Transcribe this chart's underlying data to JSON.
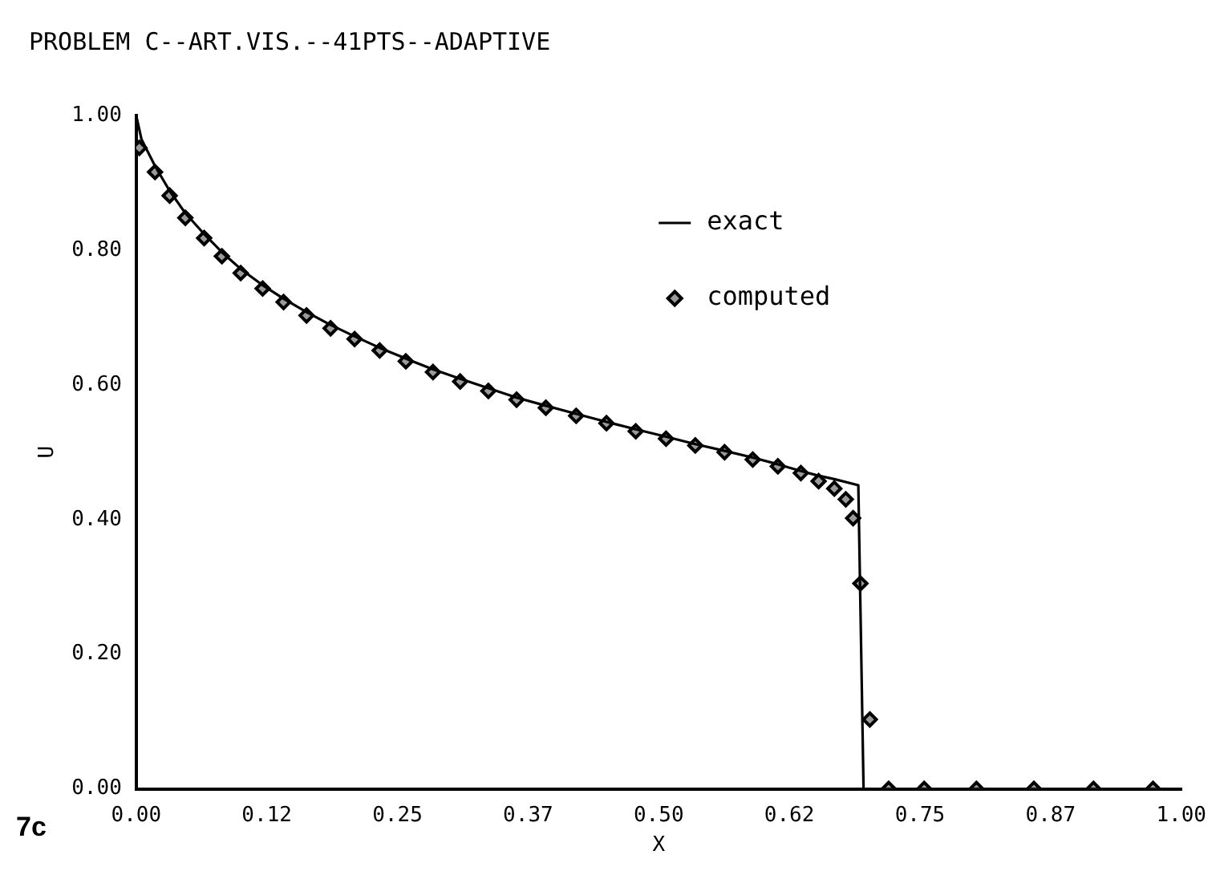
{
  "chart_data": {
    "type": "line",
    "title": "PROBLEM C--ART.VIS.--41PTS--ADAPTIVE",
    "xlabel": "X",
    "ylabel": "U",
    "annotations": [
      "7c"
    ],
    "xlim": [
      0,
      1
    ],
    "ylim": [
      0,
      1
    ],
    "xticks": [
      {
        "value": 0,
        "label": "0.00"
      },
      {
        "value": 0.125,
        "label": "0.12"
      },
      {
        "value": 0.25,
        "label": "0.25"
      },
      {
        "value": 0.375,
        "label": "0.37"
      },
      {
        "value": 0.5,
        "label": "0.50"
      },
      {
        "value": 0.625,
        "label": "0.62"
      },
      {
        "value": 0.75,
        "label": "0.75"
      },
      {
        "value": 0.875,
        "label": "0.87"
      },
      {
        "value": 1,
        "label": "1.00"
      }
    ],
    "yticks": [
      {
        "value": 0,
        "label": "0.00"
      },
      {
        "value": 0.2,
        "label": "0.20"
      },
      {
        "value": 0.4,
        "label": "0.40"
      },
      {
        "value": 0.6,
        "label": "0.60"
      },
      {
        "value": 0.8,
        "label": "0.80"
      },
      {
        "value": 1,
        "label": "1.00"
      }
    ],
    "grid": false,
    "legend": "top right",
    "series": [
      {
        "name": "exact",
        "color": "#000000",
        "marker": "none",
        "line_style": "solid",
        "x": [
          0,
          0.005,
          0.018,
          0.032,
          0.047,
          0.065,
          0.082,
          0.1,
          0.121,
          0.141,
          0.163,
          0.186,
          0.209,
          0.233,
          0.258,
          0.284,
          0.31,
          0.337,
          0.364,
          0.392,
          0.421,
          0.45,
          0.478,
          0.507,
          0.535,
          0.563,
          0.59,
          0.614,
          0.636,
          0.653,
          0.668,
          0.691,
          0.696,
          1
        ],
        "values": [
          1,
          0.965,
          0.925,
          0.888,
          0.855,
          0.824,
          0.797,
          0.772,
          0.748,
          0.728,
          0.708,
          0.689,
          0.672,
          0.655,
          0.639,
          0.623,
          0.609,
          0.595,
          0.581,
          0.569,
          0.557,
          0.545,
          0.534,
          0.523,
          0.512,
          0.502,
          0.492,
          0.482,
          0.472,
          0.465,
          0.46,
          0.451,
          0,
          0
        ]
      },
      {
        "name": "computed",
        "type": "scatter",
        "color": "#000000",
        "marker": "diamond",
        "x": [
          0.003,
          0.018,
          0.032,
          0.047,
          0.065,
          0.082,
          0.1,
          0.121,
          0.141,
          0.163,
          0.186,
          0.209,
          0.233,
          0.258,
          0.284,
          0.31,
          0.337,
          0.364,
          0.392,
          0.421,
          0.45,
          0.478,
          0.507,
          0.535,
          0.563,
          0.59,
          0.614,
          0.636,
          0.653,
          0.668,
          0.679,
          0.686,
          0.693,
          0.702,
          0.72,
          0.754,
          0.804,
          0.859,
          0.916,
          0.973
        ],
        "values": [
          0.952,
          0.916,
          0.881,
          0.848,
          0.818,
          0.791,
          0.766,
          0.743,
          0.723,
          0.703,
          0.684,
          0.668,
          0.651,
          0.635,
          0.619,
          0.605,
          0.591,
          0.578,
          0.566,
          0.554,
          0.543,
          0.531,
          0.52,
          0.51,
          0.5,
          0.489,
          0.479,
          0.469,
          0.457,
          0.446,
          0.43,
          0.402,
          0.305,
          0.103,
          0,
          0,
          0,
          0,
          0,
          0
        ]
      }
    ]
  }
}
